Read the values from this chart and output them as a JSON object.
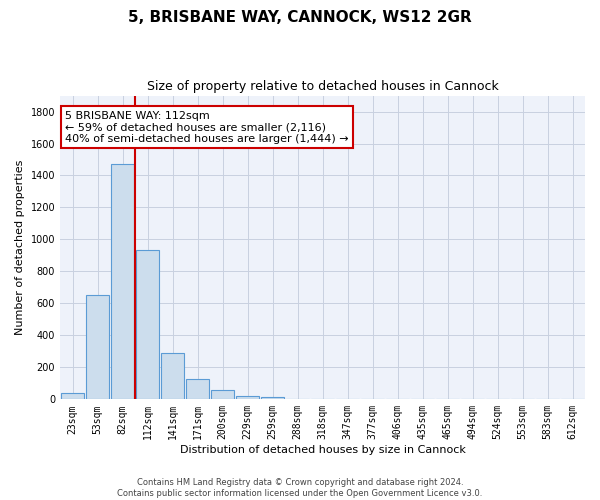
{
  "title": "5, BRISBANE WAY, CANNOCK, WS12 2GR",
  "subtitle": "Size of property relative to detached houses in Cannock",
  "xlabel": "Distribution of detached houses by size in Cannock",
  "ylabel": "Number of detached properties",
  "bar_labels": [
    "23sqm",
    "53sqm",
    "82sqm",
    "112sqm",
    "141sqm",
    "171sqm",
    "200sqm",
    "229sqm",
    "259sqm",
    "288sqm",
    "318sqm",
    "347sqm",
    "377sqm",
    "406sqm",
    "435sqm",
    "465sqm",
    "494sqm",
    "524sqm",
    "553sqm",
    "583sqm",
    "612sqm"
  ],
  "bar_values": [
    40,
    650,
    1470,
    935,
    290,
    125,
    60,
    22,
    15,
    0,
    0,
    0,
    0,
    0,
    0,
    0,
    0,
    0,
    0,
    0,
    0
  ],
  "bar_color": "#ccdded",
  "bar_edge_color": "#5b9bd5",
  "vline_color": "#cc0000",
  "ylim": [
    0,
    1900
  ],
  "yticks": [
    0,
    200,
    400,
    600,
    800,
    1000,
    1200,
    1400,
    1600,
    1800
  ],
  "annotation_title": "5 BRISBANE WAY: 112sqm",
  "annotation_line1": "← 59% of detached houses are smaller (2,116)",
  "annotation_line2": "40% of semi-detached houses are larger (1,444) →",
  "footer1": "Contains HM Land Registry data © Crown copyright and database right 2024.",
  "footer2": "Contains public sector information licensed under the Open Government Licence v3.0.",
  "bg_color": "#eef2fa",
  "grid_color": "#c8d0e0",
  "title_fontsize": 11,
  "subtitle_fontsize": 9,
  "ylabel_fontsize": 8,
  "xlabel_fontsize": 8,
  "tick_fontsize": 7,
  "footer_fontsize": 6,
  "ann_fontsize": 8
}
